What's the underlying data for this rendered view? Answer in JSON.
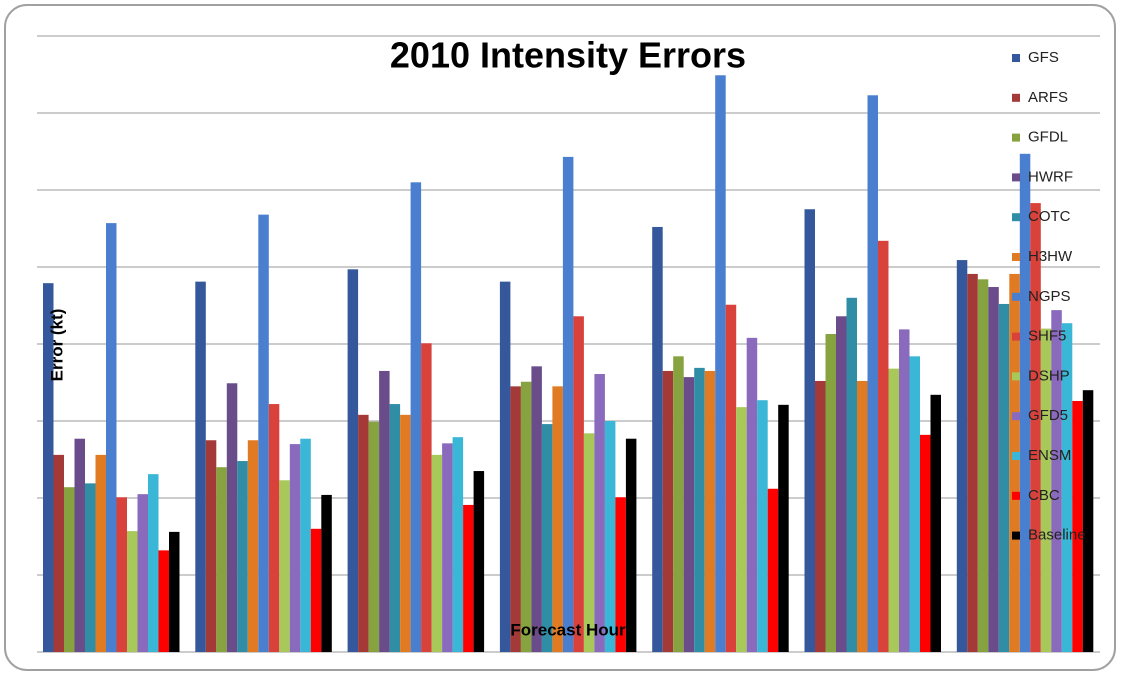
{
  "chart_data": {
    "type": "bar",
    "title": "2010 Intensity Errors",
    "x_label": "Forecast Hour",
    "y_label": "Error (kt)",
    "categories": [
      null,
      null,
      null,
      null,
      null,
      null,
      null
    ],
    "series": [
      {
        "name": "GFS",
        "color": "#34589b",
        "values": [
          4.79,
          4.81,
          4.97,
          4.81,
          5.52,
          5.75,
          5.09
        ]
      },
      {
        "name": "ARFS",
        "color": "#a33a38",
        "values": [
          2.56,
          2.75,
          3.08,
          3.45,
          3.65,
          3.52,
          4.91
        ]
      },
      {
        "name": "GFDL",
        "color": "#86a33f",
        "values": [
          2.14,
          2.4,
          2.99,
          3.51,
          3.84,
          4.13,
          4.84
        ]
      },
      {
        "name": "HWRF",
        "color": "#6a4c8a",
        "values": [
          2.77,
          3.49,
          3.65,
          3.71,
          3.57,
          4.36,
          4.74
        ]
      },
      {
        "name": "COTC",
        "color": "#2f8ea6",
        "values": [
          2.19,
          2.48,
          3.22,
          2.96,
          3.69,
          4.6,
          4.52
        ]
      },
      {
        "name": "H3HW",
        "color": "#e07b24",
        "values": [
          2.56,
          2.75,
          3.08,
          3.45,
          3.65,
          3.52,
          4.91
        ]
      },
      {
        "name": "NGPS",
        "color": "#4a7fd0",
        "values": [
          5.57,
          5.68,
          6.1,
          6.43,
          7.49,
          7.23,
          6.47
        ]
      },
      {
        "name": "SHF5",
        "color": "#d9413b",
        "values": [
          2.01,
          3.22,
          4.01,
          4.36,
          4.51,
          5.34,
          5.83
        ]
      },
      {
        "name": "DSHP",
        "color": "#a8c85a",
        "values": [
          1.57,
          2.23,
          2.56,
          2.84,
          3.18,
          3.68,
          4.2
        ]
      },
      {
        "name": "GFD5",
        "color": "#8a6abc",
        "values": [
          2.05,
          2.7,
          2.71,
          3.61,
          4.08,
          4.19,
          4.44
        ]
      },
      {
        "name": "ENSM",
        "color": "#3ab6d6",
        "values": [
          2.31,
          2.77,
          2.79,
          3.0,
          3.27,
          3.84,
          4.27
        ]
      },
      {
        "name": "CBC",
        "color": "#ff0000",
        "values": [
          1.32,
          1.6,
          1.91,
          2.01,
          2.12,
          2.82,
          3.26
        ]
      },
      {
        "name": "Baseline",
        "color": "#000000",
        "values": [
          1.56,
          2.04,
          2.35,
          2.77,
          3.21,
          3.34,
          3.4
        ]
      }
    ],
    "ylim": [
      0,
      8
    ],
    "yticks": [
      0,
      1,
      2,
      3,
      4,
      5,
      6,
      7,
      8
    ],
    "tick_labels": false,
    "grid": true,
    "legend": "right"
  }
}
